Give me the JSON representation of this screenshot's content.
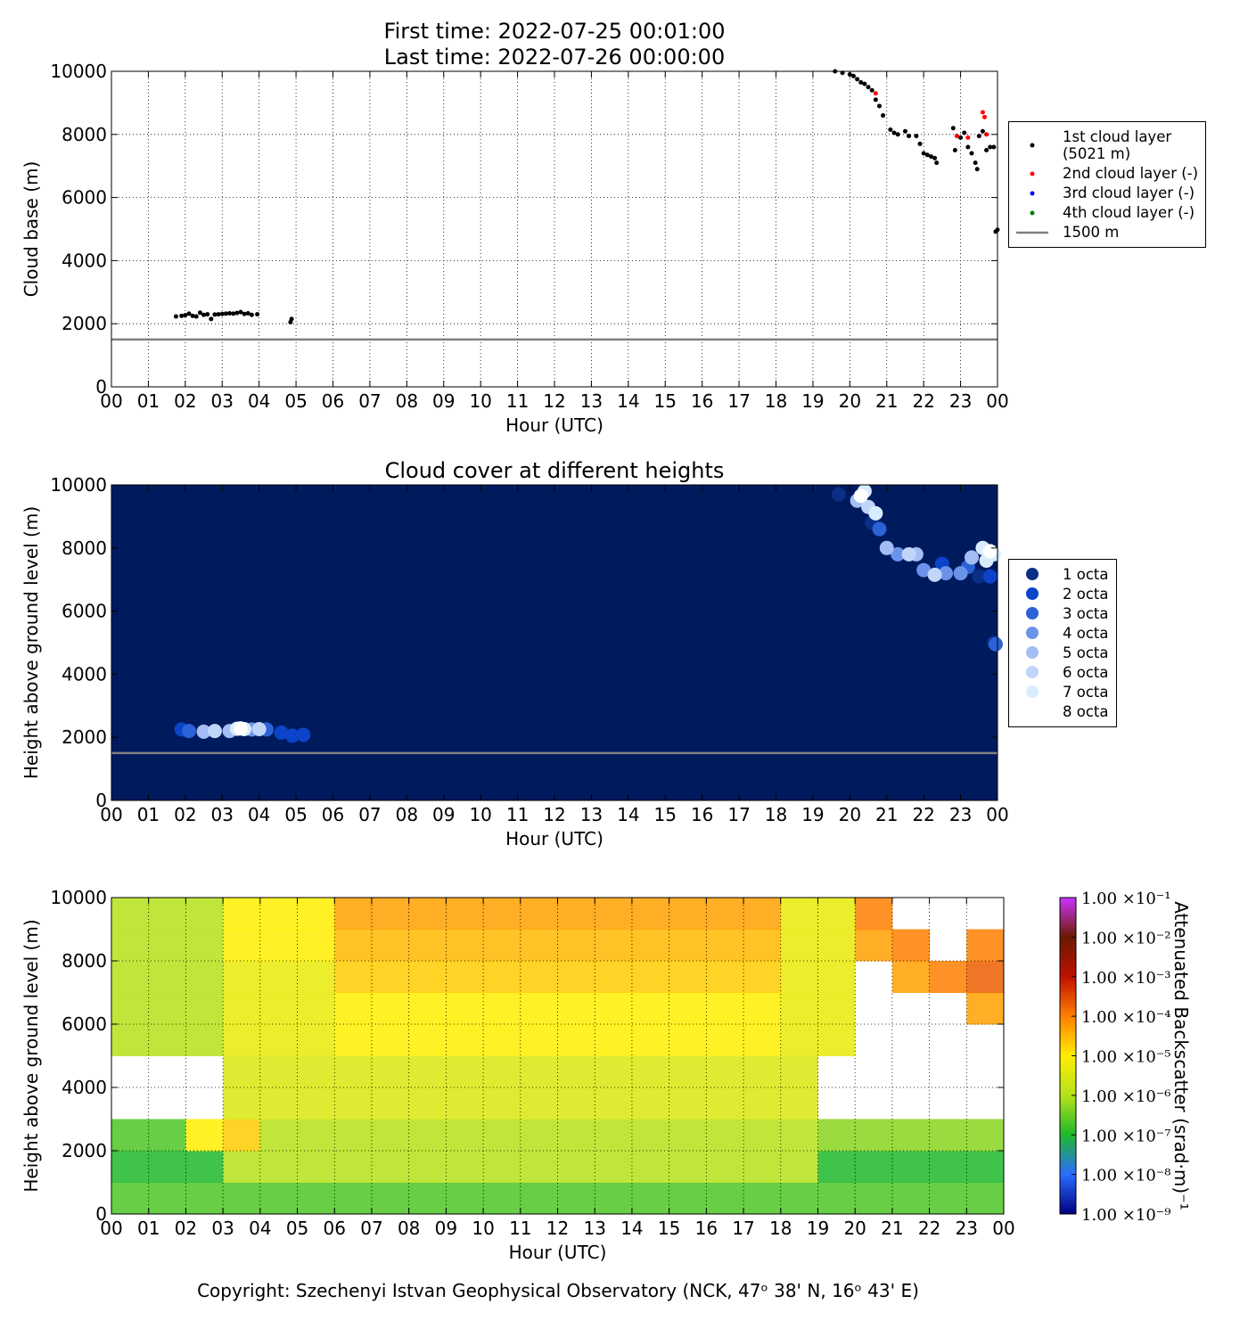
{
  "chart_data": [
    {
      "type": "scatter",
      "title": "First time: 2022-07-25 00:01:00",
      "subtitle": "Last time: 2022-07-26 00:00:00",
      "xlabel": "Hour (UTC)",
      "ylabel": "Cloud base (m)",
      "xlim": [
        0,
        24
      ],
      "ylim": [
        0,
        10000
      ],
      "xticks": [
        {
          "value": 0,
          "label": "00"
        },
        {
          "value": 1,
          "label": "01"
        },
        {
          "value": 2,
          "label": "02"
        },
        {
          "value": 3,
          "label": "03"
        },
        {
          "value": 4,
          "label": "04"
        },
        {
          "value": 5,
          "label": "05"
        },
        {
          "value": 6,
          "label": "06"
        },
        {
          "value": 7,
          "label": "07"
        },
        {
          "value": 8,
          "label": "08"
        },
        {
          "value": 9,
          "label": "09"
        },
        {
          "value": 10,
          "label": "10"
        },
        {
          "value": 11,
          "label": "11"
        },
        {
          "value": 12,
          "label": "12"
        },
        {
          "value": 13,
          "label": "13"
        },
        {
          "value": 14,
          "label": "14"
        },
        {
          "value": 15,
          "label": "15"
        },
        {
          "value": 16,
          "label": "16"
        },
        {
          "value": 17,
          "label": "17"
        },
        {
          "value": 18,
          "label": "18"
        },
        {
          "value": 19,
          "label": "19"
        },
        {
          "value": 20,
          "label": "20"
        },
        {
          "value": 21,
          "label": "21"
        },
        {
          "value": 22,
          "label": "22"
        },
        {
          "value": 23,
          "label": "23"
        },
        {
          "value": 24,
          "label": "00"
        }
      ],
      "yticks": [
        0,
        2000,
        4000,
        6000,
        8000,
        10000
      ],
      "grid": true,
      "legend": "outside-right",
      "marker_size": 2.5,
      "series": [
        {
          "name": "1st cloud layer\n(5021 m)",
          "color": "#000000",
          "x": [
            1.75,
            1.9,
            2.0,
            2.1,
            2.2,
            2.3,
            2.4,
            2.5,
            2.6,
            2.7,
            2.8,
            2.9,
            3.0,
            3.1,
            3.2,
            3.3,
            3.4,
            3.5,
            3.6,
            3.7,
            3.8,
            3.95,
            4.85,
            4.88,
            19.6,
            19.8,
            20.0,
            20.1,
            20.2,
            20.3,
            20.4,
            20.5,
            20.6,
            20.7,
            20.8,
            20.9,
            21.1,
            21.2,
            21.3,
            21.5,
            21.6,
            21.8,
            21.9,
            22.0,
            22.1,
            22.2,
            22.3,
            22.35,
            22.8,
            22.85,
            23.0,
            23.1,
            23.2,
            23.3,
            23.4,
            23.45,
            23.5,
            23.6,
            23.7,
            23.8,
            23.9,
            23.95,
            24.0
          ],
          "values": [
            2230,
            2250,
            2270,
            2320,
            2250,
            2230,
            2350,
            2280,
            2300,
            2150,
            2290,
            2300,
            2310,
            2320,
            2330,
            2320,
            2340,
            2370,
            2310,
            2330,
            2280,
            2300,
            2050,
            2150,
            10000,
            9950,
            9900,
            9850,
            9750,
            9650,
            9600,
            9500,
            9400,
            9100,
            8900,
            8600,
            8150,
            8050,
            8000,
            8100,
            7950,
            7950,
            7700,
            7400,
            7350,
            7300,
            7250,
            7100,
            8200,
            7500,
            7900,
            8050,
            7600,
            7400,
            7100,
            6900,
            7950,
            8100,
            7500,
            7600,
            7600,
            4920,
            4980
          ]
        },
        {
          "name": "2nd cloud layer (-)",
          "color": "#ff0000",
          "x": [
            20.7,
            22.9,
            23.2,
            23.6,
            23.65,
            23.7
          ],
          "values": [
            9300,
            7950,
            7900,
            8700,
            8550,
            8000
          ]
        },
        {
          "name": "3rd cloud layer (-)",
          "color": "#0000ff",
          "x": [],
          "values": []
        },
        {
          "name": "4th cloud layer (-)",
          "color": "#008000",
          "x": [],
          "values": []
        }
      ],
      "reference_line": {
        "name": "1500 m",
        "value": 1500,
        "color": "#808080"
      }
    },
    {
      "type": "scatter",
      "title": "Cloud cover at different heights",
      "xlabel": "Hour (UTC)",
      "ylabel": "Height above ground level (m)",
      "xlim": [
        0,
        24
      ],
      "ylim": [
        0,
        10000
      ],
      "xticks": [
        {
          "value": 0,
          "label": "00"
        },
        {
          "value": 1,
          "label": "01"
        },
        {
          "value": 2,
          "label": "02"
        },
        {
          "value": 3,
          "label": "03"
        },
        {
          "value": 4,
          "label": "04"
        },
        {
          "value": 5,
          "label": "05"
        },
        {
          "value": 6,
          "label": "06"
        },
        {
          "value": 7,
          "label": "07"
        },
        {
          "value": 8,
          "label": "08"
        },
        {
          "value": 9,
          "label": "09"
        },
        {
          "value": 10,
          "label": "10"
        },
        {
          "value": 11,
          "label": "11"
        },
        {
          "value": 12,
          "label": "12"
        },
        {
          "value": 13,
          "label": "13"
        },
        {
          "value": 14,
          "label": "14"
        },
        {
          "value": 15,
          "label": "15"
        },
        {
          "value": 16,
          "label": "16"
        },
        {
          "value": 17,
          "label": "17"
        },
        {
          "value": 18,
          "label": "18"
        },
        {
          "value": 19,
          "label": "19"
        },
        {
          "value": 20,
          "label": "20"
        },
        {
          "value": 21,
          "label": "21"
        },
        {
          "value": 22,
          "label": "22"
        },
        {
          "value": 23,
          "label": "23"
        },
        {
          "value": 24,
          "label": "00"
        }
      ],
      "yticks": [
        0,
        2000,
        4000,
        6000,
        8000,
        10000
      ],
      "grid": false,
      "legend": "outside-right",
      "background": "#001a5e",
      "marker_size": 8,
      "series": [
        {
          "name": "1 octa",
          "color": "#0b2f86",
          "x": [
            19.7,
            20.6,
            23.5,
            23.9
          ],
          "values": [
            9700,
            8800,
            7100,
            5000
          ]
        },
        {
          "name": "2 octa",
          "color": "#0b44c8",
          "x": [
            1.9,
            4.6,
            4.9,
            5.2,
            22.5,
            23.8
          ],
          "values": [
            2250,
            2150,
            2050,
            2080,
            7500,
            7100
          ]
        },
        {
          "name": "3 octa",
          "color": "#2c62d8",
          "x": [
            2.1,
            4.2,
            20.8,
            23.2,
            23.95
          ],
          "values": [
            2200,
            2250,
            8600,
            7400,
            4950
          ]
        },
        {
          "name": "4 octa",
          "color": "#6b93ea",
          "x": [
            3.8,
            21.3,
            22.0,
            22.6,
            23.0
          ],
          "values": [
            2250,
            7800,
            7300,
            7200,
            7200
          ]
        },
        {
          "name": "5 octa",
          "color": "#a4bef5",
          "x": [
            2.5,
            3.2,
            20.2,
            21.0,
            21.8,
            23.3
          ],
          "values": [
            2180,
            2200,
            9500,
            8000,
            7800,
            7700
          ]
        },
        {
          "name": "6 octa",
          "color": "#c1d5f9",
          "x": [
            2.8,
            4.0,
            20.5,
            21.6,
            22.3
          ],
          "values": [
            2200,
            2260,
            9300,
            7800,
            7150
          ]
        },
        {
          "name": "7 octa",
          "color": "#d9ecfe",
          "x": [
            3.4,
            3.6,
            20.4,
            20.7,
            23.6,
            23.7,
            23.9
          ],
          "values": [
            2270,
            2260,
            9800,
            9100,
            8000,
            7600,
            7800
          ]
        },
        {
          "name": "8 octa",
          "color": "#ffffff",
          "x": [
            3.5,
            20.3,
            23.8
          ],
          "values": [
            2280,
            9650,
            7900
          ]
        }
      ],
      "reference_line": {
        "value": 1500,
        "color": "#808080"
      }
    },
    {
      "type": "heatmap",
      "xlabel": "Hour (UTC)",
      "ylabel": "Height above ground level (m)",
      "colorbar_label": "Attenuated Backscatter (srad·m)⁻¹",
      "xlim": [
        0,
        24
      ],
      "ylim": [
        0,
        10000
      ],
      "xticks": [
        {
          "value": 0,
          "label": "00"
        },
        {
          "value": 1,
          "label": "01"
        },
        {
          "value": 2,
          "label": "02"
        },
        {
          "value": 3,
          "label": "03"
        },
        {
          "value": 4,
          "label": "04"
        },
        {
          "value": 5,
          "label": "05"
        },
        {
          "value": 6,
          "label": "06"
        },
        {
          "value": 7,
          "label": "07"
        },
        {
          "value": 8,
          "label": "08"
        },
        {
          "value": 9,
          "label": "09"
        },
        {
          "value": 10,
          "label": "10"
        },
        {
          "value": 11,
          "label": "11"
        },
        {
          "value": 12,
          "label": "12"
        },
        {
          "value": 13,
          "label": "13"
        },
        {
          "value": 14,
          "label": "14"
        },
        {
          "value": 15,
          "label": "15"
        },
        {
          "value": 16,
          "label": "16"
        },
        {
          "value": 17,
          "label": "17"
        },
        {
          "value": 18,
          "label": "18"
        },
        {
          "value": 19,
          "label": "19"
        },
        {
          "value": 20,
          "label": "20"
        },
        {
          "value": 21,
          "label": "21"
        },
        {
          "value": 22,
          "label": "22"
        },
        {
          "value": 23,
          "label": "23"
        },
        {
          "value": 24,
          "label": "00"
        }
      ],
      "yticks": [
        0,
        2000,
        4000,
        6000,
        8000,
        10000
      ],
      "grid": true,
      "color_scale": "log",
      "clim": [
        1e-09,
        0.1
      ],
      "cticks": [
        {
          "value": 1e-09,
          "label": "1.00 ×10⁻⁹"
        },
        {
          "value": 1e-08,
          "label": "1.00 ×10⁻⁸"
        },
        {
          "value": 1e-07,
          "label": "1.00 ×10⁻⁷"
        },
        {
          "value": 1e-06,
          "label": "1.00 ×10⁻⁶"
        },
        {
          "value": 1e-05,
          "label": "1.00 ×10⁻⁵"
        },
        {
          "value": 0.0001,
          "label": "1.00 ×10⁻⁴"
        },
        {
          "value": 0.001,
          "label": "1.00 ×10⁻³"
        },
        {
          "value": 0.01,
          "label": "1.00 ×10⁻²"
        },
        {
          "value": 0.1,
          "label": "1.00 ×10⁻¹"
        }
      ],
      "colormap": [
        "#000080",
        "#2a6cff",
        "#1fb82b",
        "#b5e21a",
        "#ffee00",
        "#ff7f00",
        "#c01000",
        "#6a1a00",
        "#cc33ff"
      ],
      "x_bins": [
        0,
        1,
        2,
        3,
        4,
        5,
        6,
        7,
        8,
        9,
        10,
        11,
        12,
        13,
        14,
        15,
        16,
        17,
        18,
        19,
        20,
        21,
        22,
        23,
        24
      ],
      "y_bins": [
        0,
        1000,
        2000,
        3000,
        4000,
        5000,
        6000,
        7000,
        8000,
        9000,
        10000
      ],
      "z": [
        [
          2e-07,
          2e-07,
          2e-07,
          2e-07,
          2e-07,
          2e-07,
          2e-07,
          2e-07,
          2e-07,
          2e-07,
          2e-07,
          2e-07,
          2e-07,
          2e-07,
          2e-07,
          2e-07,
          2e-07,
          2e-07,
          2e-07,
          2e-07,
          2e-07,
          2e-07,
          2e-07,
          2e-07
        ],
        [
          1e-07,
          1e-07,
          1e-07,
          1e-06,
          1e-06,
          1e-06,
          1e-06,
          1e-06,
          1e-06,
          1e-06,
          1e-06,
          1e-06,
          1e-06,
          1e-06,
          1e-06,
          1e-06,
          1e-06,
          1e-06,
          1e-06,
          1e-07,
          1e-07,
          1e-07,
          1e-07,
          1e-07
        ],
        [
          2e-07,
          2e-07,
          1e-05,
          2e-05,
          1e-06,
          1e-06,
          1e-06,
          1e-06,
          1e-06,
          1e-06,
          1e-06,
          1e-06,
          1e-06,
          1e-06,
          1e-06,
          1e-06,
          1e-06,
          1e-06,
          1e-06,
          5e-07,
          5e-07,
          5e-07,
          5e-07,
          5e-07
        ],
        [
          null,
          null,
          null,
          3e-06,
          3e-06,
          3e-06,
          3e-06,
          3e-06,
          3e-06,
          3e-06,
          3e-06,
          3e-06,
          3e-06,
          3e-06,
          3e-06,
          3e-06,
          3e-06,
          3e-06,
          3e-06,
          null,
          null,
          null,
          null,
          null
        ],
        [
          null,
          null,
          null,
          3e-06,
          3e-06,
          3e-06,
          3e-06,
          3e-06,
          3e-06,
          3e-06,
          3e-06,
          3e-06,
          3e-06,
          3e-06,
          3e-06,
          3e-06,
          3e-06,
          3e-06,
          3e-06,
          null,
          null,
          null,
          null,
          null
        ],
        [
          1e-06,
          1e-06,
          1e-06,
          5e-06,
          5e-06,
          5e-06,
          1e-05,
          1e-05,
          1e-05,
          1e-05,
          1e-05,
          1e-05,
          1e-05,
          1e-05,
          1e-05,
          1e-05,
          1e-05,
          1e-05,
          5e-06,
          5e-06,
          null,
          null,
          null,
          null
        ],
        [
          1e-06,
          1e-06,
          1e-06,
          5e-06,
          5e-06,
          5e-06,
          1e-05,
          1e-05,
          1e-05,
          1e-05,
          1e-05,
          1e-05,
          1e-05,
          1e-05,
          1e-05,
          1e-05,
          1e-05,
          1e-05,
          5e-06,
          5e-06,
          null,
          null,
          null,
          5e-05
        ],
        [
          1e-06,
          1e-06,
          1e-06,
          5e-06,
          5e-06,
          5e-06,
          2e-05,
          2e-05,
          2e-05,
          2e-05,
          2e-05,
          2e-05,
          2e-05,
          2e-05,
          2e-05,
          2e-05,
          2e-05,
          2e-05,
          5e-06,
          5e-06,
          null,
          5e-05,
          0.0001,
          0.0002
        ],
        [
          1e-06,
          1e-06,
          1e-06,
          1e-05,
          1e-05,
          1e-05,
          3e-05,
          3e-05,
          3e-05,
          3e-05,
          3e-05,
          3e-05,
          3e-05,
          3e-05,
          3e-05,
          3e-05,
          3e-05,
          3e-05,
          5e-06,
          5e-06,
          5e-05,
          0.0001,
          null,
          0.0001
        ],
        [
          1e-06,
          1e-06,
          1e-06,
          1e-05,
          1e-05,
          1e-05,
          5e-05,
          5e-05,
          5e-05,
          5e-05,
          5e-05,
          5e-05,
          5e-05,
          5e-05,
          5e-05,
          5e-05,
          5e-05,
          5e-05,
          5e-06,
          5e-06,
          0.0001,
          null,
          null,
          null
        ]
      ]
    }
  ],
  "copyright": "Copyright: Szechenyi Istvan Geophysical Observatory (NCK, 47ᵒ 38' N, 16ᵒ 43' E)"
}
